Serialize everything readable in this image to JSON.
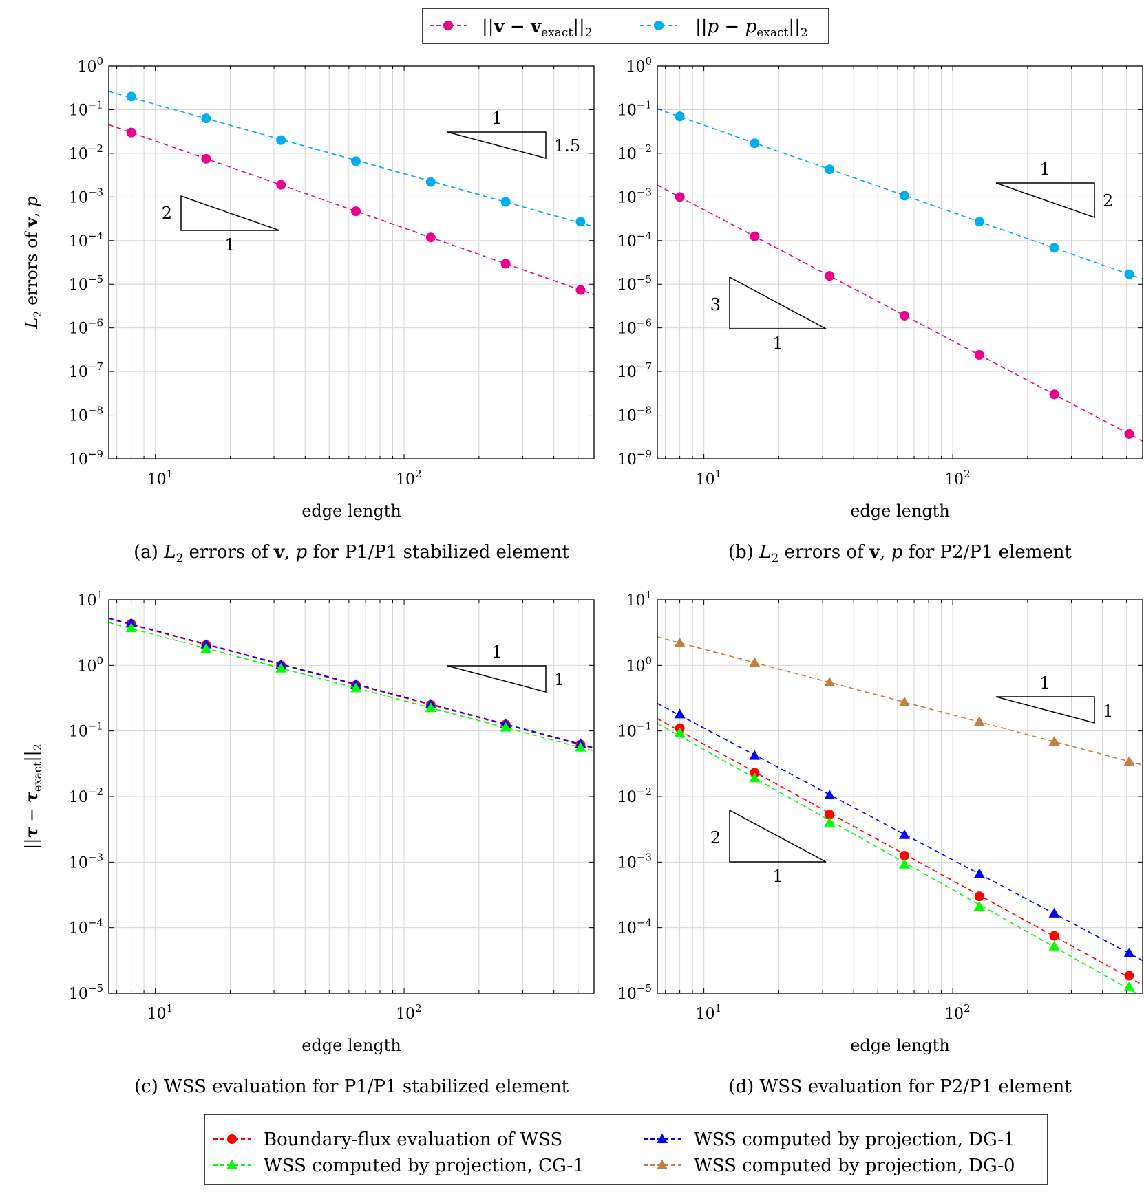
{
  "legend_top": [
    {
      "name": "||v − v_exact||_2",
      "color": "#ec008c",
      "marker": "circle"
    },
    {
      "name": "||p − p_exact||_2",
      "color": "#00aeef",
      "marker": "circle"
    }
  ],
  "legend_bottom": [
    {
      "name": "Boundary-flux evaluation of WSS",
      "color": "#ff0000",
      "marker": "circle"
    },
    {
      "name": "WSS computed by projection, DG-1",
      "color": "#0000ff",
      "marker": "triangle"
    },
    {
      "name": "WSS computed by projection, CG-1",
      "color": "#00ff00",
      "marker": "triangle"
    },
    {
      "name": "WSS computed by projection, DG-0",
      "color": "#bf8040",
      "marker": "triangle"
    }
  ],
  "chart_data": [
    {
      "id": "a",
      "type": "line",
      "caption": "(a) L2 errors of v, p for P1/P1 stabilized element",
      "xlabel": "edge length",
      "ylabel": "L2 errors of v, p",
      "xscale": "log",
      "yscale": "log",
      "xlim": [
        6.5,
        580
      ],
      "ylim": [
        1e-09,
        1
      ],
      "grid": true,
      "x": [
        8,
        16,
        32,
        64,
        128,
        256,
        512
      ],
      "series": [
        {
          "name": "||v − v_exact||_2",
          "color": "#ec008c",
          "marker": "circle",
          "values": [
            0.03,
            0.0075,
            0.0019,
            0.00047,
            0.000118,
            2.95e-05,
            7.4e-06
          ]
        },
        {
          "name": "||p − p_exact||_2",
          "color": "#00aeef",
          "marker": "circle",
          "values": [
            0.2,
            0.063,
            0.02,
            0.0066,
            0.0022,
            0.00077,
            0.00027
          ]
        }
      ],
      "slope_triangles": [
        {
          "run": "1",
          "rise": "1.5"
        },
        {
          "run": "1",
          "rise": "2"
        }
      ]
    },
    {
      "id": "b",
      "type": "line",
      "caption": "(b) L2 errors of v, p for P2/P1 element",
      "xlabel": "edge length",
      "ylabel": "",
      "xscale": "log",
      "yscale": "log",
      "xlim": [
        6.5,
        580
      ],
      "ylim": [
        1e-09,
        1
      ],
      "grid": true,
      "x": [
        8,
        16,
        32,
        64,
        128,
        256,
        512
      ],
      "series": [
        {
          "name": "||v − v_exact||_2",
          "color": "#ec008c",
          "marker": "circle",
          "values": [
            0.001,
            0.000125,
            1.55e-05,
            1.9e-06,
            2.4e-07,
            3e-08,
            3.7e-09
          ]
        },
        {
          "name": "||p − p_exact||_2",
          "color": "#00aeef",
          "marker": "circle",
          "values": [
            0.07,
            0.017,
            0.0043,
            0.00107,
            0.00027,
            6.8e-05,
            1.7e-05
          ]
        }
      ],
      "slope_triangles": [
        {
          "run": "1",
          "rise": "2"
        },
        {
          "run": "1",
          "rise": "3"
        }
      ]
    },
    {
      "id": "c",
      "type": "line",
      "caption": "(c) WSS evaluation for P1/P1 stabilized element",
      "xlabel": "edge length",
      "ylabel": "||τ − τ_exact||_2",
      "xscale": "log",
      "yscale": "log",
      "xlim": [
        6.5,
        580
      ],
      "ylim": [
        1e-05,
        10
      ],
      "grid": true,
      "x": [
        8,
        16,
        32,
        64,
        128,
        256,
        512
      ],
      "series": [
        {
          "name": "Boundary-flux evaluation of WSS",
          "color": "#ff0000",
          "marker": "circle",
          "values": [
            4.3,
            2.05,
            1.0,
            0.5,
            0.25,
            0.125,
            0.062
          ]
        },
        {
          "name": "WSS computed by projection, DG-1",
          "color": "#0000ff",
          "marker": "triangle",
          "values": [
            4.4,
            2.1,
            1.02,
            0.51,
            0.255,
            0.128,
            0.064
          ]
        },
        {
          "name": "WSS computed by projection, CG-1",
          "color": "#00ff00",
          "marker": "triangle",
          "values": [
            3.7,
            1.8,
            0.9,
            0.45,
            0.225,
            0.113,
            0.056
          ]
        }
      ],
      "slope_triangles": [
        {
          "run": "1",
          "rise": "1"
        }
      ]
    },
    {
      "id": "d",
      "type": "line",
      "caption": "(d) WSS evaluation for P2/P1 element",
      "xlabel": "edge length",
      "ylabel": "",
      "xscale": "log",
      "yscale": "log",
      "xlim": [
        6.5,
        580
      ],
      "ylim": [
        1e-05,
        10
      ],
      "grid": true,
      "x": [
        8,
        16,
        32,
        64,
        128,
        256,
        512
      ],
      "series": [
        {
          "name": "WSS computed by projection, DG-0",
          "color": "#bf8040",
          "marker": "triangle",
          "values": [
            2.2,
            1.1,
            0.55,
            0.275,
            0.138,
            0.069,
            0.034
          ]
        },
        {
          "name": "WSS computed by projection, DG-1",
          "color": "#0000ff",
          "marker": "triangle",
          "values": [
            0.18,
            0.042,
            0.0105,
            0.0026,
            0.00066,
            0.000165,
            4.1e-05
          ]
        },
        {
          "name": "Boundary-flux evaluation of WSS",
          "color": "#ff0000",
          "marker": "circle",
          "values": [
            0.11,
            0.023,
            0.0053,
            0.00125,
            0.0003,
            7.5e-05,
            1.85e-05
          ]
        },
        {
          "name": "WSS computed by projection, CG-1",
          "color": "#00ff00",
          "marker": "triangle",
          "values": [
            0.093,
            0.019,
            0.004,
            0.00092,
            0.00021,
            5.2e-05,
            1.25e-05
          ]
        }
      ],
      "slope_triangles": [
        {
          "run": "1",
          "rise": "1"
        },
        {
          "run": "1",
          "rise": "2"
        }
      ]
    }
  ]
}
